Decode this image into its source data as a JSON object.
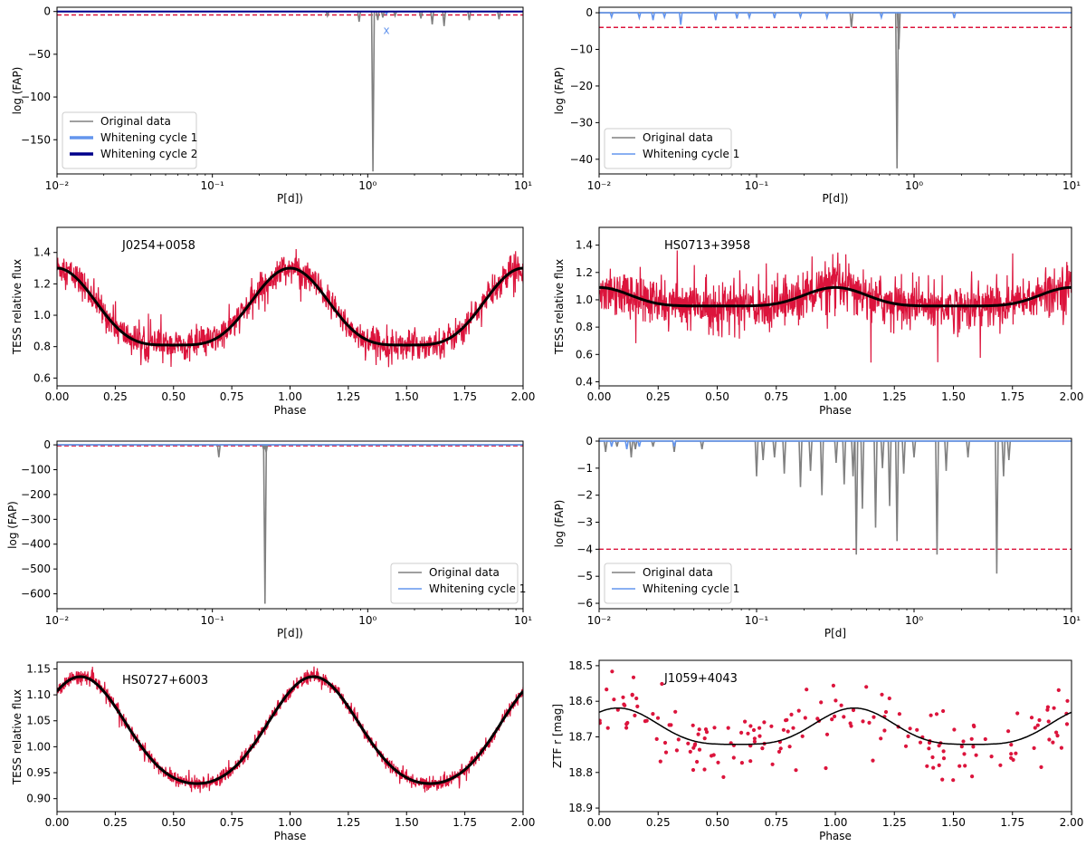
{
  "colors": {
    "original": "#808080",
    "whitening1": "#6495ED",
    "whitening2": "#00008B",
    "threshold": "#DC143C",
    "flux": "#DC143C",
    "model": "#000000"
  },
  "chart_data": [
    {
      "id": "p1",
      "type": "line",
      "xscale": "log",
      "xlim": [
        0.01,
        10
      ],
      "ylim": [
        -190,
        5
      ],
      "xlabel": "P[d])",
      "ylabel": "log (FAP)",
      "xticks": [
        0.01,
        0.1,
        1,
        10
      ],
      "xtick_labels": [
        "10⁻²",
        "10⁻¹",
        "10⁰",
        "10¹"
      ],
      "yticks": [
        0,
        -50,
        -100,
        -150
      ],
      "ytick_labels": [
        "0",
        "−50",
        "−100",
        "−150"
      ],
      "threshold": -4,
      "legend": [
        "Original data",
        "Whitening cycle 1",
        "Whitening cycle 2"
      ],
      "legend_position": "lower-left",
      "marker_label": "x",
      "marker": {
        "x": 1.32,
        "y": -22
      },
      "series": [
        {
          "name": "Original data",
          "peaks": [
            [
              0.55,
              -5
            ],
            [
              0.88,
              -12
            ],
            [
              1.08,
              -187
            ],
            [
              1.16,
              -10
            ],
            [
              1.25,
              -7
            ],
            [
              1.5,
              -5
            ],
            [
              2.2,
              -8
            ],
            [
              2.6,
              -15
            ],
            [
              3.1,
              -17
            ],
            [
              4.5,
              -10
            ],
            [
              7.0,
              -9
            ]
          ]
        },
        {
          "name": "Whitening cycle 1",
          "peaks": [
            [
              1.32,
              -3
            ]
          ]
        },
        {
          "name": "Whitening cycle 2",
          "peaks": []
        }
      ]
    },
    {
      "id": "p2",
      "type": "line",
      "xscale": "log",
      "xlim": [
        0.01,
        10
      ],
      "ylim": [
        -44,
        1.5
      ],
      "xlabel": "P[d])",
      "ylabel": "log (FAP)",
      "xticks": [
        0.01,
        0.1,
        1,
        10
      ],
      "xtick_labels": [
        "10⁻²",
        "10⁻¹",
        "10⁰",
        "10¹"
      ],
      "yticks": [
        0,
        -10,
        -20,
        -30,
        -40
      ],
      "ytick_labels": [
        "0",
        "−10",
        "−20",
        "−30",
        "−40"
      ],
      "threshold": -4,
      "legend": [
        "Original data",
        "Whitening cycle 1"
      ],
      "legend_position": "lower-left",
      "series": [
        {
          "name": "Original data",
          "peaks": [
            [
              0.4,
              -4
            ],
            [
              0.78,
              -42.5
            ],
            [
              0.8,
              -10
            ]
          ]
        },
        {
          "name": "Whitening cycle 1",
          "peaks": [
            [
              0.012,
              -1.2
            ],
            [
              0.018,
              -1.4
            ],
            [
              0.022,
              -2
            ],
            [
              0.026,
              -1.2
            ],
            [
              0.033,
              -3.3
            ],
            [
              0.055,
              -2
            ],
            [
              0.075,
              -1.6
            ],
            [
              0.09,
              -1.3
            ],
            [
              0.13,
              -1.5
            ],
            [
              0.19,
              -1.2
            ],
            [
              0.28,
              -1.4
            ],
            [
              0.62,
              -1.3
            ],
            [
              1.8,
              -1.5
            ]
          ]
        }
      ]
    },
    {
      "id": "p3",
      "type": "line",
      "title": "J0254+0058",
      "xlim": [
        0,
        2
      ],
      "ylim": [
        0.55,
        1.56
      ],
      "xlabel": "Phase",
      "ylabel": "TESS relative flux",
      "xticks": [
        0,
        0.25,
        0.5,
        0.75,
        1,
        1.25,
        1.5,
        1.75,
        2
      ],
      "xtick_labels": [
        "0.00",
        "0.25",
        "0.50",
        "0.75",
        "1.00",
        "1.25",
        "1.50",
        "1.75",
        "2.00"
      ],
      "yticks": [
        0.6,
        0.8,
        1.0,
        1.2,
        1.4
      ],
      "ytick_labels": [
        "0.6",
        "0.8",
        "1.0",
        "1.2",
        "1.4"
      ],
      "model": {
        "kind": "spot",
        "base": 0.81,
        "amp": 0.49,
        "power": 4
      },
      "noise": 0.15
    },
    {
      "id": "p4",
      "type": "line",
      "title": "HS0713+3958",
      "xlim": [
        0,
        2
      ],
      "ylim": [
        0.37,
        1.53
      ],
      "xlabel": "Phase",
      "ylabel": "TESS relative flux",
      "xticks": [
        0,
        0.25,
        0.5,
        0.75,
        1,
        1.25,
        1.5,
        1.75,
        2
      ],
      "xtick_labels": [
        "0.00",
        "0.25",
        "0.50",
        "0.75",
        "1.00",
        "1.25",
        "1.50",
        "1.75",
        "2.00"
      ],
      "yticks": [
        0.4,
        0.6,
        0.8,
        1.0,
        1.2,
        1.4
      ],
      "ytick_labels": [
        "0.4",
        "0.6",
        "0.8",
        "1.0",
        "1.2",
        "1.4"
      ],
      "model": {
        "kind": "spot",
        "base": 0.955,
        "amp": 0.135,
        "power": 6
      },
      "noise": 0.28
    },
    {
      "id": "p5",
      "type": "line",
      "xscale": "log",
      "xlim": [
        0.01,
        10
      ],
      "ylim": [
        -660,
        15
      ],
      "xlabel": "P[d])",
      "ylabel": "log (FAP)",
      "xticks": [
        0.01,
        0.1,
        1,
        10
      ],
      "xtick_labels": [
        "10⁻²",
        "10⁻¹",
        "10⁰",
        "10¹"
      ],
      "yticks": [
        0,
        -100,
        -200,
        -300,
        -400,
        -500,
        -600
      ],
      "ytick_labels": [
        "0",
        "−100",
        "−200",
        "−300",
        "−400",
        "−500",
        "−600"
      ],
      "threshold": -4,
      "legend": [
        "Original data",
        "Whitening cycle 1"
      ],
      "legend_position": "lower-right",
      "series": [
        {
          "name": "Original data",
          "peaks": [
            [
              0.11,
              -50
            ],
            [
              0.218,
              -640
            ],
            [
              0.222,
              -30
            ],
            [
              0.214,
              -20
            ]
          ]
        },
        {
          "name": "Whitening cycle 1",
          "peaks": []
        }
      ]
    },
    {
      "id": "p6",
      "type": "line",
      "xscale": "log",
      "xlim": [
        0.01,
        10
      ],
      "ylim": [
        -6.2,
        0.1
      ],
      "xlabel": "P[d]",
      "ylabel": "log (FAP)",
      "xticks": [
        0.01,
        0.1,
        1,
        10
      ],
      "xtick_labels": [
        "10⁻²",
        "10⁻¹",
        "10⁰",
        "10¹"
      ],
      "yticks": [
        0,
        -1,
        -2,
        -3,
        -4,
        -5,
        -6
      ],
      "ytick_labels": [
        "0",
        "−1",
        "−2",
        "−3",
        "−4",
        "−5",
        "−6"
      ],
      "threshold": -4,
      "legend": [
        "Original data",
        "Whitening cycle 1"
      ],
      "legend_position": "lower-left",
      "series": [
        {
          "name": "Original data",
          "peaks": [
            [
              0.011,
              -0.4
            ],
            [
              0.013,
              -0.2
            ],
            [
              0.016,
              -0.6
            ],
            [
              0.017,
              -0.3
            ],
            [
              0.022,
              -0.2
            ],
            [
              0.03,
              -0.4
            ],
            [
              0.045,
              -0.3
            ],
            [
              0.1,
              -1.3
            ],
            [
              0.11,
              -0.7
            ],
            [
              0.13,
              -0.6
            ],
            [
              0.15,
              -1.2
            ],
            [
              0.19,
              -1.7
            ],
            [
              0.22,
              -1.1
            ],
            [
              0.26,
              -2.0
            ],
            [
              0.32,
              -0.8
            ],
            [
              0.36,
              -1.6
            ],
            [
              0.41,
              -1.3
            ],
            [
              0.43,
              -4.2
            ],
            [
              0.47,
              -2.5
            ],
            [
              0.57,
              -3.2
            ],
            [
              0.63,
              -1.0
            ],
            [
              0.7,
              -2.4
            ],
            [
              0.78,
              -3.7
            ],
            [
              0.86,
              -1.2
            ],
            [
              1.0,
              -0.6
            ],
            [
              1.4,
              -4.2
            ],
            [
              1.6,
              -1.1
            ],
            [
              2.2,
              -0.6
            ],
            [
              3.35,
              -4.9
            ],
            [
              3.7,
              -1.3
            ],
            [
              4.0,
              -0.7
            ]
          ]
        },
        {
          "name": "Whitening cycle 1",
          "peaks": [
            [
              0.012,
              -0.2
            ],
            [
              0.015,
              -0.3
            ],
            [
              0.018,
              -0.2
            ],
            [
              0.03,
              -0.2
            ]
          ]
        }
      ]
    },
    {
      "id": "p7",
      "type": "line",
      "title": "HS0727+6003",
      "xlim": [
        0,
        2
      ],
      "ylim": [
        0.875,
        1.163
      ],
      "xlabel": "Phase",
      "ylabel": "TESS relative flux",
      "xticks": [
        0,
        0.25,
        0.5,
        0.75,
        1,
        1.25,
        1.5,
        1.75,
        2
      ],
      "xtick_labels": [
        "0.00",
        "0.25",
        "0.50",
        "0.75",
        "1.00",
        "1.25",
        "1.50",
        "1.75",
        "2.00"
      ],
      "yticks": [
        0.9,
        0.95,
        1.0,
        1.05,
        1.1,
        1.15
      ],
      "ytick_labels": [
        "0.90",
        "0.95",
        "1.00",
        "1.05",
        "1.10",
        "1.15"
      ],
      "model": {
        "kind": "sine",
        "mean": 1.02,
        "amp": 0.103,
        "phase": 0.1,
        "h2": 0.012
      },
      "noise": 0.022
    },
    {
      "id": "p8",
      "type": "scatter",
      "title": "J1059+4043",
      "xlim": [
        0,
        2
      ],
      "ylim": [
        18.91,
        18.485
      ],
      "invert_y": true,
      "xlabel": "Phase",
      "ylabel": "ZTF r [mag]",
      "xticks": [
        0,
        0.25,
        0.5,
        0.75,
        1,
        1.25,
        1.5,
        1.75,
        2
      ],
      "xtick_labels": [
        "0.00",
        "0.25",
        "0.50",
        "0.75",
        "1.00",
        "1.25",
        "1.50",
        "1.75",
        "2.00"
      ],
      "yticks": [
        18.5,
        18.6,
        18.7,
        18.8,
        18.9
      ],
      "ytick_labels": [
        "18.5",
        "18.6",
        "18.7",
        "18.8",
        "18.9"
      ],
      "model": {
        "kind": "sine",
        "mean": 18.682,
        "amp": -0.051,
        "phase": 0.08,
        "h2": -0.012
      },
      "npoints": 180,
      "noise": 0.09
    }
  ]
}
